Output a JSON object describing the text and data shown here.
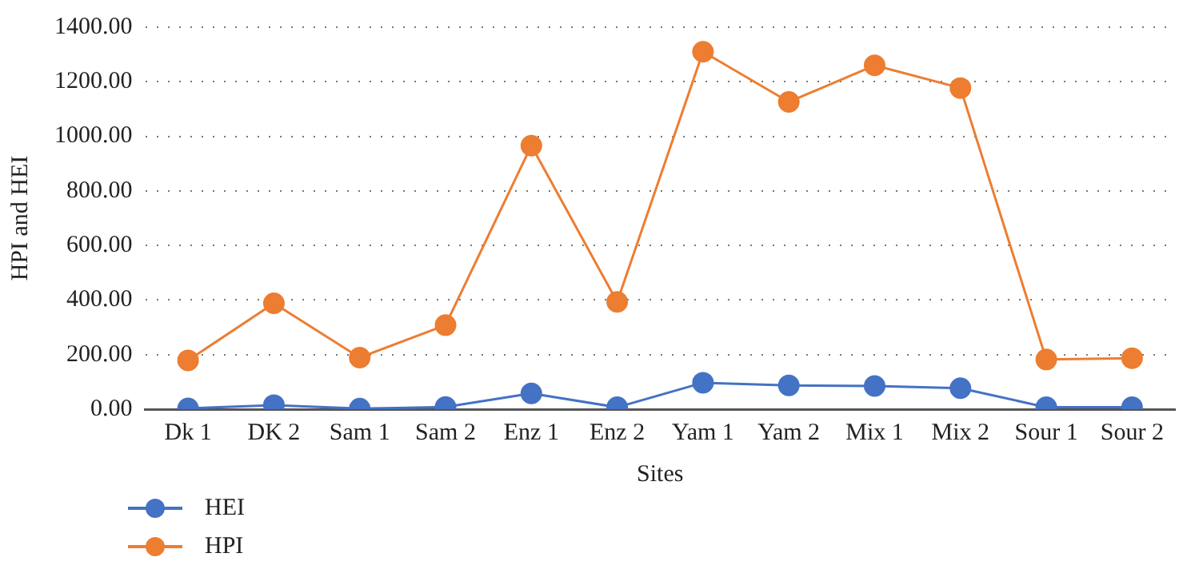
{
  "chart_data": {
    "type": "line",
    "xlabel": "Sites",
    "ylabel": "HPI and HEI",
    "categories": [
      "Dk 1",
      "DK 2",
      "Sam 1",
      "Sam 2",
      "Enz 1",
      "Enz 2",
      "Yam 1",
      "Yam 2",
      "Mix 1",
      "Mix 2",
      "Sour 1",
      "Sour 2"
    ],
    "series": [
      {
        "name": "HEI",
        "color": "#4472c4",
        "values": [
          3,
          15,
          2,
          8,
          58,
          7,
          97,
          87,
          85,
          77,
          7,
          7
        ]
      },
      {
        "name": "HPI",
        "color": "#ed7d31",
        "values": [
          179,
          388,
          189,
          308,
          966,
          393,
          1310,
          1126,
          1260,
          1177,
          182,
          187
        ]
      }
    ],
    "ylim": [
      0,
      1400
    ],
    "yticks": [
      {
        "value": 0,
        "label": "0.00"
      },
      {
        "value": 200,
        "label": "200.00"
      },
      {
        "value": 400,
        "label": "400.00"
      },
      {
        "value": 600,
        "label": "600.00"
      },
      {
        "value": 800,
        "label": "800.00"
      },
      {
        "value": 1000,
        "label": "1000.00"
      },
      {
        "value": 1200,
        "label": "1200.00"
      },
      {
        "value": 1400,
        "label": "1400.00"
      }
    ],
    "grid": "y",
    "legend": "bottom left",
    "marker": "circle",
    "line_style": "solid"
  }
}
